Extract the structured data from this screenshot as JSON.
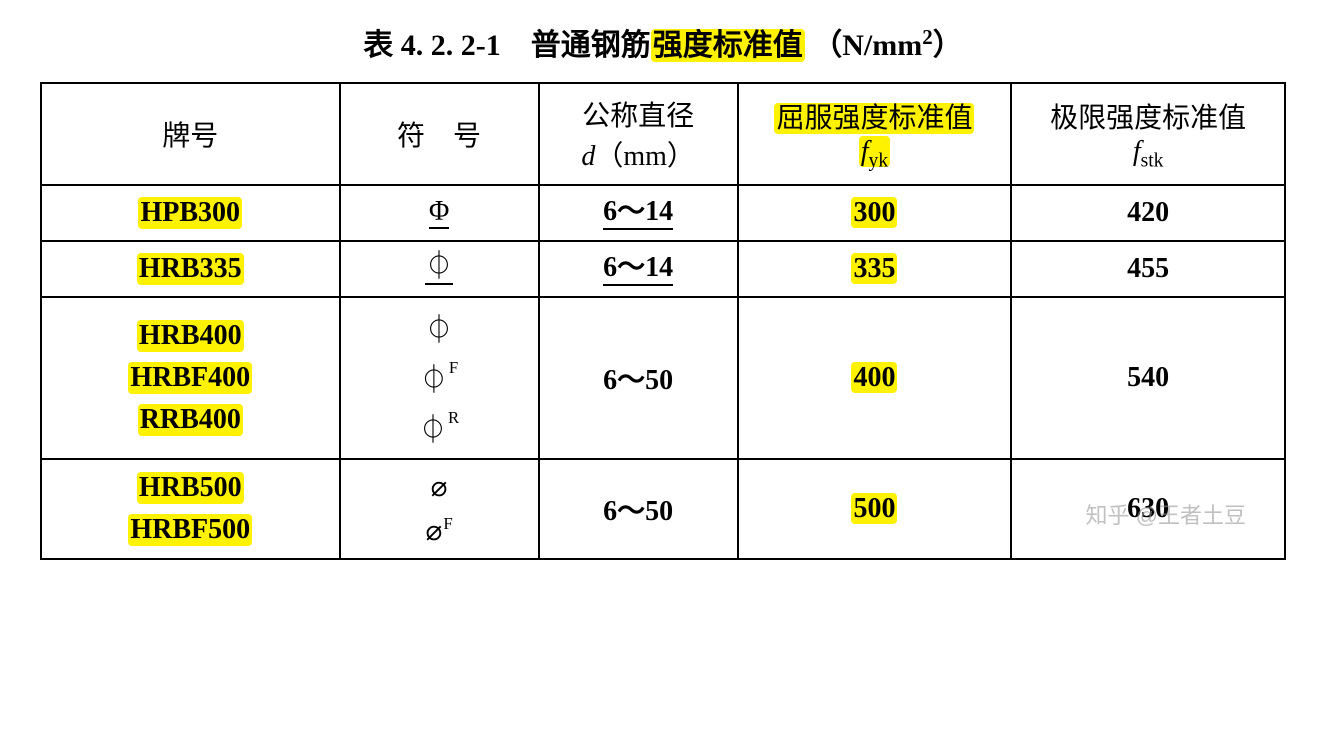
{
  "title": {
    "prefix": "表 4. 2. 2-1　普通钢筋",
    "hl_part": "强度标准值",
    "unit_open": "（N/mm",
    "unit_sup": "2",
    "unit_close": "）"
  },
  "headers": {
    "grade": "牌号",
    "symbol": "符　号",
    "diameter_label": "公称直径",
    "diameter_var": "d",
    "diameter_unit": "（mm）",
    "fyk_label": "屈服强度标准值",
    "fyk_symbol": "f",
    "fyk_sub": "yk",
    "fstk_label": "极限强度标准值",
    "fstk_symbol": "f",
    "fstk_sub": "stk"
  },
  "rows": [
    {
      "grades": [
        "HPB300"
      ],
      "symbols": [
        "Φ"
      ],
      "sym_sups": [
        ""
      ],
      "diam": "6～14",
      "diam_underline": true,
      "fyk": "300",
      "fstk": "420"
    },
    {
      "grades": [
        "HRB335"
      ],
      "symbols": [
        "⏀"
      ],
      "sym_sups": [
        ""
      ],
      "diam": "6～14",
      "diam_underline": true,
      "fyk": "335",
      "fstk": "455"
    },
    {
      "grades": [
        "HRB400",
        "HRBF400",
        "RRB400"
      ],
      "symbols": [
        "⏀",
        "⏀",
        "⏀"
      ],
      "sym_sups": [
        "",
        "F",
        "R"
      ],
      "diam": "6～50",
      "diam_underline": false,
      "fyk": "400",
      "fstk": "540"
    },
    {
      "grades": [
        "HRB500",
        "HRBF500"
      ],
      "symbols": [
        "⌀",
        "⌀"
      ],
      "sym_sups": [
        "",
        "F"
      ],
      "diam": "6～50",
      "diam_underline": false,
      "fyk": "500",
      "fstk": "630"
    }
  ],
  "watermark": "知乎 @王者土豆",
  "highlight_color": "#fef200",
  "border_color": "#000000",
  "font_sizes": {
    "title": 30,
    "cell": 28
  }
}
